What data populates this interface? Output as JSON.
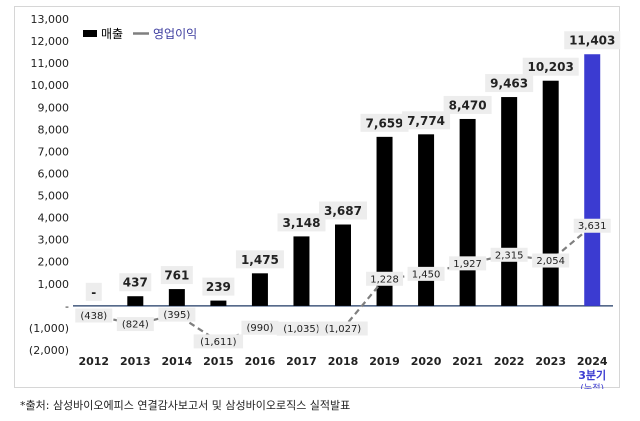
{
  "chart_data": {
    "type": "bar+line",
    "title": "",
    "categories": [
      "2012",
      "2013",
      "2014",
      "2015",
      "2016",
      "2017",
      "2018",
      "2019",
      "2020",
      "2021",
      "2022",
      "2023",
      "2024"
    ],
    "category_sublabels": {
      "12": [
        "3분기",
        "(누적)"
      ]
    },
    "ylim": [
      -2000,
      13000
    ],
    "ytick_step": 1000,
    "ytick_labels": [
      "(2,000)",
      "(1,000)",
      "-",
      "1,000",
      "2,000",
      "3,000",
      "4,000",
      "5,000",
      "6,000",
      "7,000",
      "8,000",
      "9,000",
      "10,000",
      "11,000",
      "12,000",
      "13,000"
    ],
    "series": [
      {
        "name": "매출",
        "kind": "bar",
        "color": "#000000",
        "highlight_color": "#3b3bd1",
        "values": [
          0,
          437,
          761,
          239,
          1475,
          3148,
          3687,
          7659,
          7774,
          8470,
          9463,
          10203,
          11403
        ],
        "labels": [
          "-",
          "437",
          "761",
          "239",
          "1,475",
          "3,148",
          "3,687",
          "7,659",
          "7,774",
          "8,470",
          "9,463",
          "10,203",
          "11,403"
        ]
      },
      {
        "name": "영업이익",
        "kind": "line",
        "color": "#7f7f7f",
        "values": [
          -438,
          -824,
          -395,
          -1611,
          -990,
          -1035,
          -1027,
          1228,
          1450,
          1927,
          2315,
          2054,
          3631
        ],
        "labels": [
          "(438)",
          "(824)",
          "(395)",
          "(1,611)",
          "(990)",
          "(1,035)",
          "(1,027)",
          "1,228",
          "1,450",
          "1,927",
          "2,315",
          "2,054",
          "3,631"
        ]
      }
    ],
    "legend": {
      "position": "top-left"
    },
    "highlight_category_color": "#3b3bd1"
  },
  "source_note": "*출처: 삼성바이오에피스 연결감사보고서 및 삼성바이오로직스 실적발표"
}
